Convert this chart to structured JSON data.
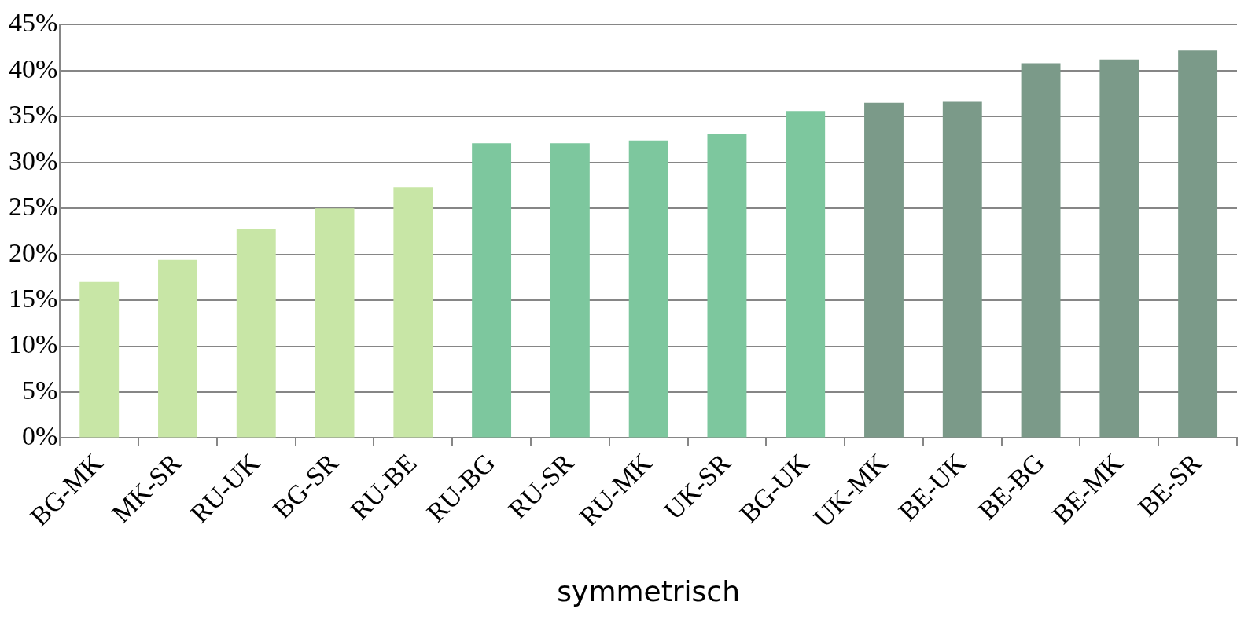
{
  "chart_data": {
    "type": "bar",
    "xlabel": "symmetrisch",
    "categories": [
      "BG-MK",
      "MK-SR",
      "RU-UK",
      "BG-SR",
      "RU-BE",
      "RU-BG",
      "RU-SR",
      "RU-MK",
      "UK-SR",
      "BG-UK",
      "UK-MK",
      "BE-UK",
      "BE-BG",
      "BE-MK",
      "BE-SR"
    ],
    "values": [
      17.0,
      19.4,
      22.8,
      25.0,
      27.3,
      32.1,
      32.1,
      32.4,
      33.1,
      35.6,
      36.5,
      36.6,
      40.8,
      41.2,
      42.2
    ],
    "colors": [
      "#c8e6a6",
      "#c8e6a6",
      "#c8e6a6",
      "#c8e6a6",
      "#c8e6a6",
      "#7dc79e",
      "#7dc79e",
      "#7dc79e",
      "#7dc79e",
      "#7dc79e",
      "#7b9a89",
      "#7b9a89",
      "#7b9a89",
      "#7b9a89",
      "#7b9a89"
    ],
    "ylim": [
      0,
      45
    ],
    "yticks": [
      {
        "value": 0,
        "label": "0%"
      },
      {
        "value": 5,
        "label": "5%"
      },
      {
        "value": 10,
        "label": "10%"
      },
      {
        "value": 15,
        "label": "15%"
      },
      {
        "value": 20,
        "label": "20%"
      },
      {
        "value": 25,
        "label": "25%"
      },
      {
        "value": 30,
        "label": "30%"
      },
      {
        "value": 35,
        "label": "35%"
      },
      {
        "value": 40,
        "label": "40%"
      },
      {
        "value": 45,
        "label": "45%"
      }
    ],
    "grid": "y",
    "legend": false
  }
}
